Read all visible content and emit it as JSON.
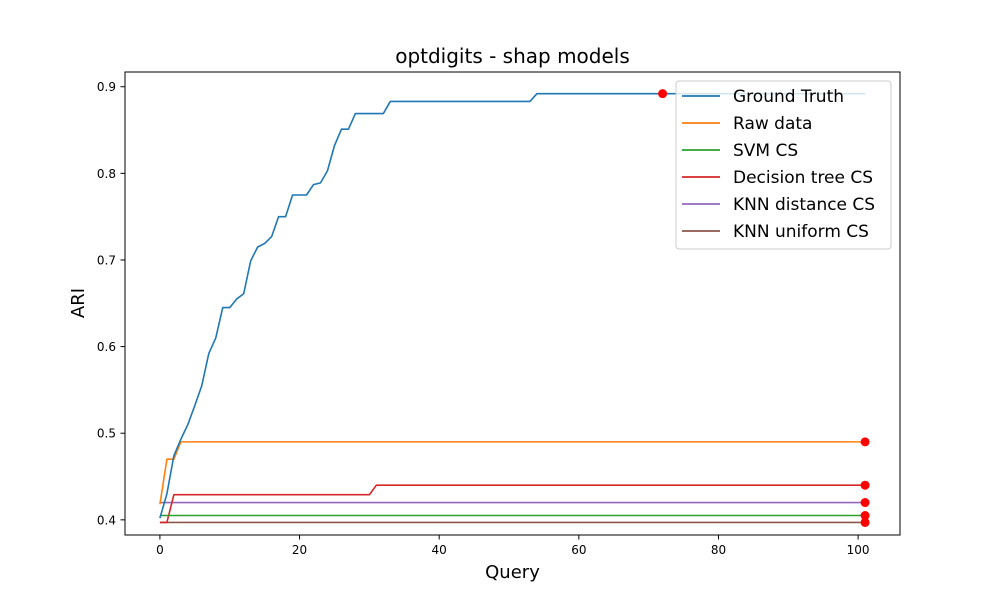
{
  "chart_data": {
    "type": "line",
    "title": "optdigits - shap models",
    "xlabel": "Query",
    "ylabel": "ARI",
    "xlim": [
      -5,
      106
    ],
    "ylim": [
      0.3825,
      0.917
    ],
    "xticks": [
      0,
      20,
      40,
      60,
      80,
      100
    ],
    "yticks": [
      0.4,
      0.5,
      0.6,
      0.7,
      0.8,
      0.9
    ],
    "grid": false,
    "legend_position": "top-right",
    "series": [
      {
        "name": "Ground Truth",
        "color": "#1f77b4",
        "x": [
          0,
          1,
          2,
          3,
          4,
          5,
          6,
          7,
          8,
          9,
          10,
          11,
          12,
          13,
          14,
          15,
          16,
          17,
          18,
          19,
          20,
          21,
          22,
          23,
          24,
          25,
          26,
          27,
          28,
          29,
          30,
          31,
          32,
          33,
          34,
          53,
          54,
          101
        ],
        "values": [
          0.402,
          0.43,
          0.474,
          0.493,
          0.51,
          0.532,
          0.555,
          0.592,
          0.61,
          0.645,
          0.645,
          0.655,
          0.661,
          0.699,
          0.715,
          0.719,
          0.727,
          0.75,
          0.75,
          0.775,
          0.775,
          0.775,
          0.787,
          0.789,
          0.803,
          0.832,
          0.851,
          0.851,
          0.869,
          0.869,
          0.869,
          0.869,
          0.869,
          0.883,
          0.883,
          0.883,
          0.892,
          0.892
        ]
      },
      {
        "name": "Raw data",
        "color": "#ff7f0e",
        "x": [
          0,
          1,
          2,
          3,
          101
        ],
        "values": [
          0.418,
          0.47,
          0.47,
          0.49,
          0.49
        ]
      },
      {
        "name": "SVM CS",
        "color": "#2ca02c",
        "x": [
          0,
          101
        ],
        "values": [
          0.405,
          0.405
        ]
      },
      {
        "name": "Decision tree CS",
        "color": "#d62728",
        "x": [
          0,
          1,
          2,
          30,
          31,
          101
        ],
        "values": [
          0.397,
          0.397,
          0.429,
          0.429,
          0.44,
          0.44
        ]
      },
      {
        "name": "KNN distance CS",
        "color": "#9467bd",
        "x": [
          0,
          101
        ],
        "values": [
          0.42,
          0.42
        ]
      },
      {
        "name": "KNN uniform CS",
        "color": "#8c564b",
        "x": [
          0,
          101
        ],
        "values": [
          0.397,
          0.397
        ]
      }
    ],
    "markers": [
      {
        "x": 72,
        "y": 0.892,
        "color": "#ff0000"
      },
      {
        "x": 101,
        "y": 0.49,
        "color": "#ff0000"
      },
      {
        "x": 101,
        "y": 0.44,
        "color": "#ff0000"
      },
      {
        "x": 101,
        "y": 0.42,
        "color": "#ff0000"
      },
      {
        "x": 101,
        "y": 0.405,
        "color": "#ff0000"
      },
      {
        "x": 101,
        "y": 0.397,
        "color": "#ff0000"
      }
    ]
  }
}
